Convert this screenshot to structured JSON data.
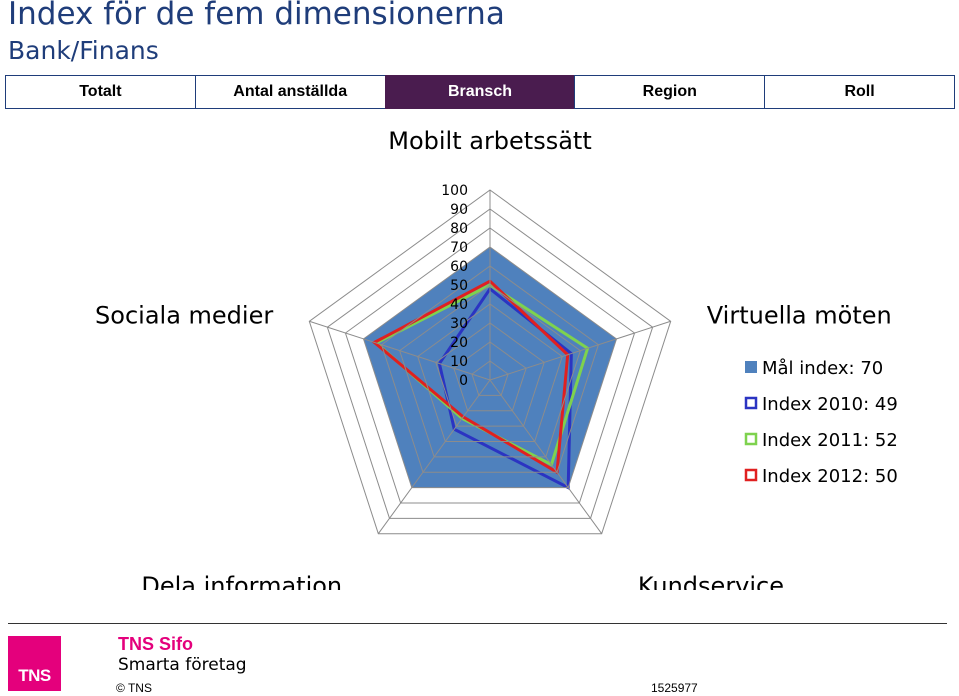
{
  "header": {
    "title": "Index för de fem dimensionerna",
    "subtitle": "Bank/Finans"
  },
  "tabs": [
    {
      "label": "Totalt",
      "active": false
    },
    {
      "label": "Antal anställda",
      "active": false
    },
    {
      "label": "Bransch",
      "active": true
    },
    {
      "label": "Region",
      "active": false
    },
    {
      "label": "Roll",
      "active": false
    }
  ],
  "chart_data": {
    "type": "radar",
    "axes": [
      "Mobilt arbetssätt",
      "Virtuella möten",
      "Kundservice",
      "Dela information",
      "Sociala medier"
    ],
    "rlim": [
      0,
      100
    ],
    "ticks": [
      "100",
      "90",
      "80",
      "70",
      "60",
      "50",
      "40",
      "30",
      "20",
      "10",
      "0"
    ],
    "legend_position": "right",
    "series": [
      {
        "name": "Mål index: 70",
        "style": "filled",
        "color": "#4f81bd",
        "values": [
          70,
          70,
          70,
          70,
          70
        ]
      },
      {
        "name": "Index 2010: 49",
        "style": "line",
        "color": "#2b34c2",
        "values": [
          48,
          45,
          70,
          32,
          28
        ]
      },
      {
        "name": "Index 2011: 52",
        "style": "line",
        "color": "#7ed24e",
        "values": [
          50,
          54,
          55,
          25,
          63
        ]
      },
      {
        "name": "Index 2012: 50",
        "style": "line",
        "color": "#e02020",
        "values": [
          52,
          43,
          60,
          24,
          64
        ]
      }
    ]
  },
  "footer": {
    "logo_text": "TNS",
    "brand": "TNS Sifo",
    "tagline": "Smarta företag",
    "copyright": "© TNS",
    "job_number": "1525977"
  }
}
